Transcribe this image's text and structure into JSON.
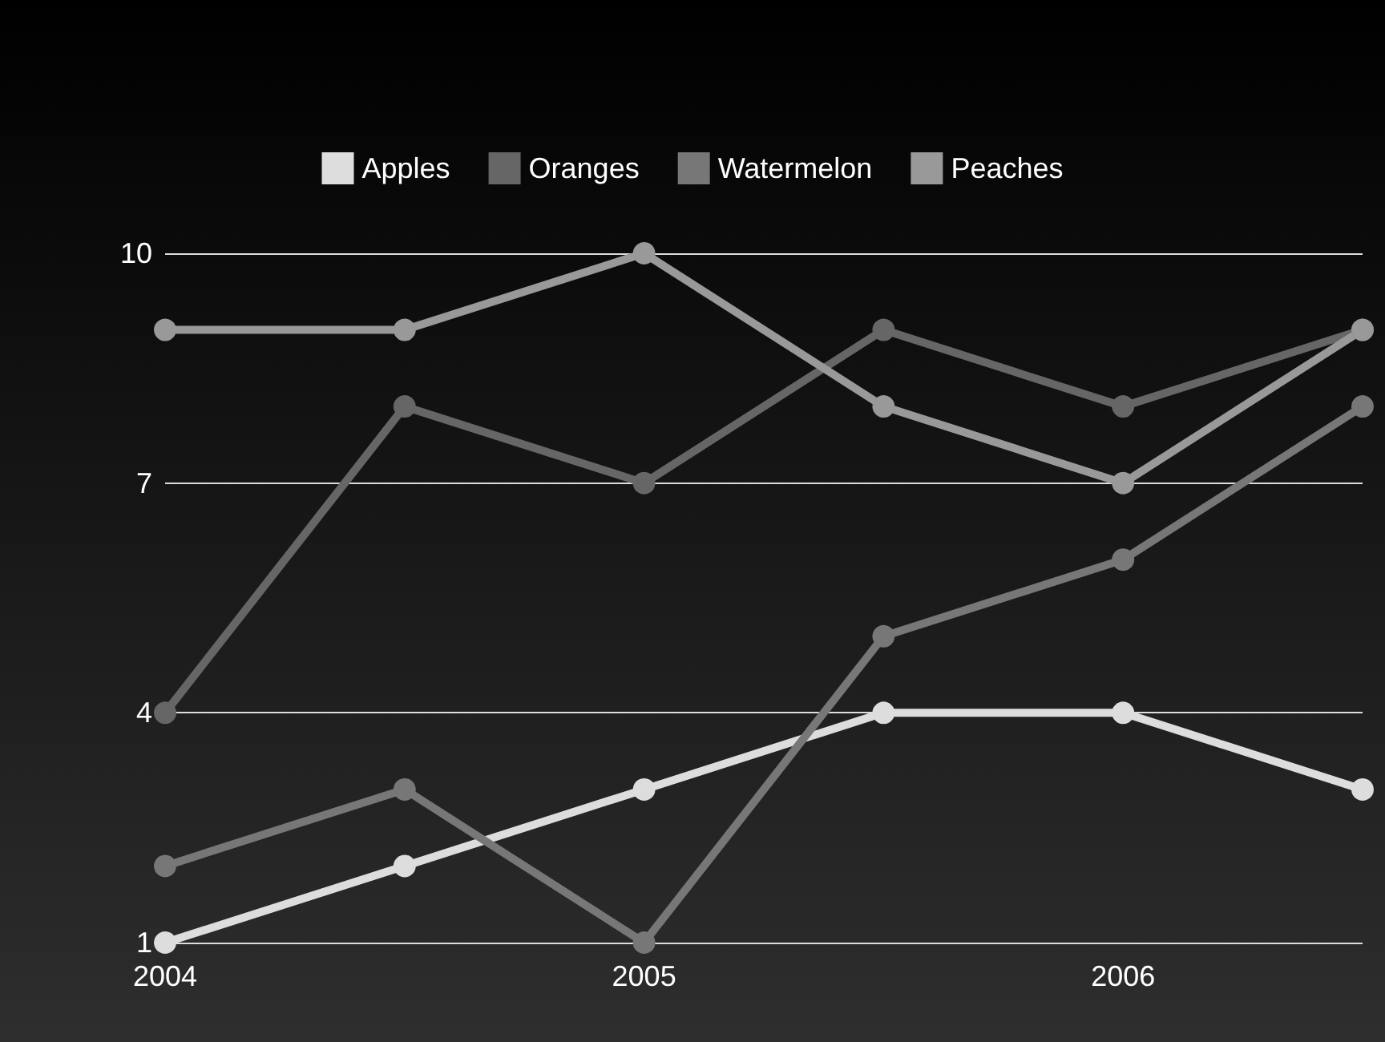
{
  "chart_data": {
    "type": "line",
    "categories": [
      "2004",
      null,
      "2005",
      null,
      "2006",
      null
    ],
    "series": [
      {
        "name": "Apples",
        "color": "#dddddd",
        "values": [
          1,
          2,
          3,
          4,
          4,
          3
        ]
      },
      {
        "name": "Oranges",
        "color": "#666666",
        "values": [
          4,
          8,
          7,
          9,
          8,
          9
        ]
      },
      {
        "name": "Watermelon",
        "color": "#777777",
        "values": [
          2,
          3,
          1,
          5,
          6,
          8
        ]
      },
      {
        "name": "Peaches",
        "color": "#999999",
        "values": [
          9,
          9,
          10,
          8,
          7,
          9
        ]
      }
    ],
    "ylim": [
      1,
      10
    ],
    "yticks": [
      1,
      4,
      7,
      10
    ],
    "grid": "y",
    "legend": "top",
    "marker": "circle",
    "line_style": "solid"
  }
}
